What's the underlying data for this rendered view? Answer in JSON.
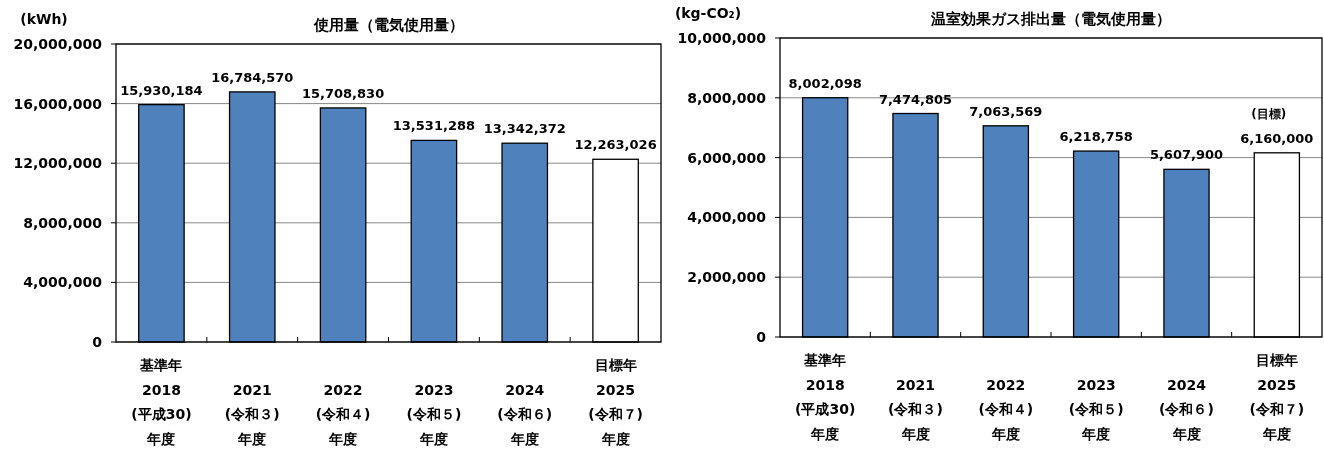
{
  "chart_data": [
    {
      "type": "bar",
      "title": "使用量（電気使用量）",
      "ylabel": "(kWh)",
      "categories": [
        "基準年\n2018\n(平成30)\n年度",
        "2021\n(令和３)\n年度",
        "2022\n(令和４)\n年度",
        "2023\n(令和５)\n年度",
        "2024\n(令和６)\n年度",
        "目標年\n2025\n(令和７)\n年度"
      ],
      "values": [
        15930184,
        16784570,
        15708830,
        13531288,
        13342372,
        12263026
      ],
      "colors": [
        "#4f81bd",
        "#4f81bd",
        "#4f81bd",
        "#4f81bd",
        "#4f81bd",
        "#ffffff"
      ],
      "ylim": [
        0,
        20000000
      ],
      "yticks": [
        {
          "value": 0,
          "label": "0"
        },
        {
          "value": 4000000,
          "label": "4,000,000"
        },
        {
          "value": 8000000,
          "label": "8,000,000"
        },
        {
          "value": 12000000,
          "label": "12,000,000"
        },
        {
          "value": 16000000,
          "label": "16,000,000"
        },
        {
          "value": 20000000,
          "label": "20,000,000"
        }
      ],
      "grid": "y",
      "value_labels": [
        "15,930,184",
        "16,784,570",
        "15,708,830",
        "13,531,288",
        "13,342,372",
        "12,263,026"
      ]
    },
    {
      "type": "bar",
      "title": "温室効果ガス排出量（電気使用量）",
      "ylabel": "(kg-CO₂)",
      "categories": [
        "基準年\n2018\n(平成30)\n年度",
        "2021\n(令和３)\n年度",
        "2022\n(令和４)\n年度",
        "2023\n(令和５)\n年度",
        "2024\n(令和６)\n年度",
        "目標年\n2025\n(令和７)\n年度"
      ],
      "values": [
        8002098,
        7474805,
        7063569,
        6218758,
        5607900,
        6160000
      ],
      "colors": [
        "#4f81bd",
        "#4f81bd",
        "#4f81bd",
        "#4f81bd",
        "#4f81bd",
        "#ffffff"
      ],
      "ylim": [
        0,
        10000000
      ],
      "yticks": [
        {
          "value": 0,
          "label": "0"
        },
        {
          "value": 2000000,
          "label": "2,000,000"
        },
        {
          "value": 4000000,
          "label": "4,000,000"
        },
        {
          "value": 6000000,
          "label": "6,000,000"
        },
        {
          "value": 8000000,
          "label": "8,000,000"
        },
        {
          "value": 10000000,
          "label": "10,000,000"
        }
      ],
      "grid": "y",
      "value_labels": [
        "8,002,098",
        "7,474,805",
        "7,063,569",
        "6,218,758",
        "5,607,900",
        "6,160,000"
      ],
      "annotations": [
        {
          "text": "(目標)",
          "x": "目標年\n2025\n(令和７)\n年度",
          "y": 6160000
        }
      ]
    }
  ]
}
